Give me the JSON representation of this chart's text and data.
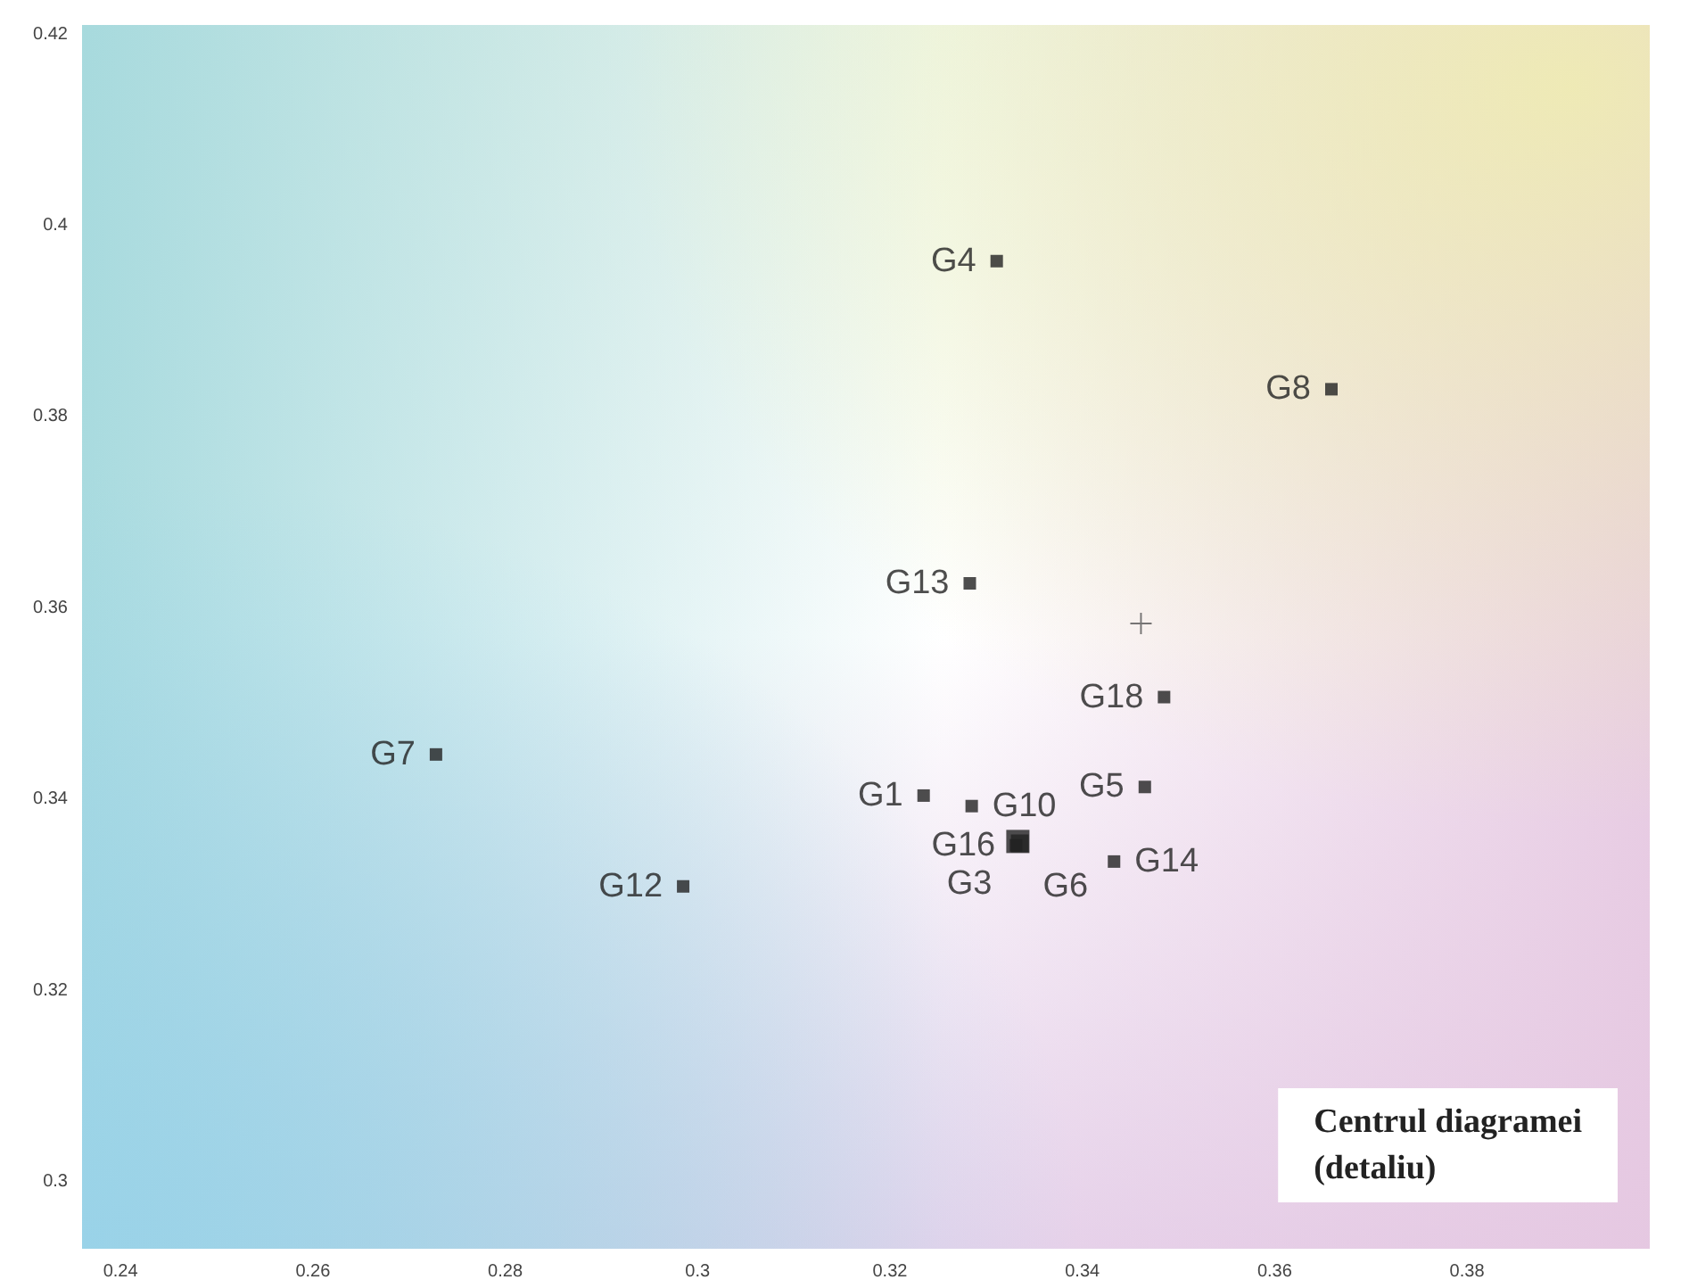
{
  "chart_data": {
    "type": "scatter",
    "marker": "square",
    "legend": false,
    "grid": false,
    "xlim": [
      0.236,
      0.399
    ],
    "ylim": [
      0.293,
      0.421
    ],
    "xticks": [
      0.24,
      0.26,
      0.28,
      0.3,
      0.32,
      0.34,
      0.36,
      0.38
    ],
    "yticks": [
      0.3,
      0.32,
      0.34,
      0.36,
      0.38,
      0.4,
      0.42
    ],
    "annotations": [
      "Centrul diagramei\n(detaliu)"
    ],
    "series": [
      {
        "name": "G4",
        "color": "#222222",
        "x": [
          0.3311
        ],
        "values": [
          0.3963
        ]
      },
      {
        "name": "G8",
        "color": "#222222",
        "x": [
          0.3659
        ],
        "values": [
          0.3829
        ]
      },
      {
        "name": "G13",
        "color": "#222222",
        "x": [
          0.3283
        ],
        "values": [
          0.3626
        ]
      },
      {
        "name": "G18",
        "color": "#222222",
        "x": [
          0.3485
        ],
        "values": [
          0.3507
        ]
      },
      {
        "name": "G5",
        "color": "#222222",
        "x": [
          0.3465
        ],
        "values": [
          0.3413
        ]
      },
      {
        "name": "G1",
        "color": "#222222",
        "x": [
          0.3235
        ],
        "values": [
          0.3404
        ]
      },
      {
        "name": "G10",
        "color": "#222222",
        "x": [
          0.3285
        ],
        "values": [
          0.3393
        ]
      },
      {
        "name": "G3",
        "color": "#222222",
        "x": [
          0.3333
        ],
        "values": [
          0.3356
        ]
      },
      {
        "name": "G6",
        "color": "#222222",
        "x": [
          0.3335
        ],
        "values": [
          0.3354
        ]
      },
      {
        "name": "G16",
        "color": "#222222",
        "x": [
          0.3331
        ],
        "values": [
          0.3352
        ]
      },
      {
        "name": "G14",
        "color": "#222222",
        "x": [
          0.3433
        ],
        "values": [
          0.3335
        ]
      },
      {
        "name": "G7",
        "color": "#222222",
        "x": [
          0.2728
        ],
        "values": [
          0.3447
        ]
      },
      {
        "name": "G12",
        "color": "#222222",
        "x": [
          0.2985
        ],
        "values": [
          0.3309
        ]
      },
      {
        "color": "#555555",
        "marker": "cross",
        "x": [
          0.3461
        ],
        "values": [
          0.3584
        ]
      }
    ]
  }
}
